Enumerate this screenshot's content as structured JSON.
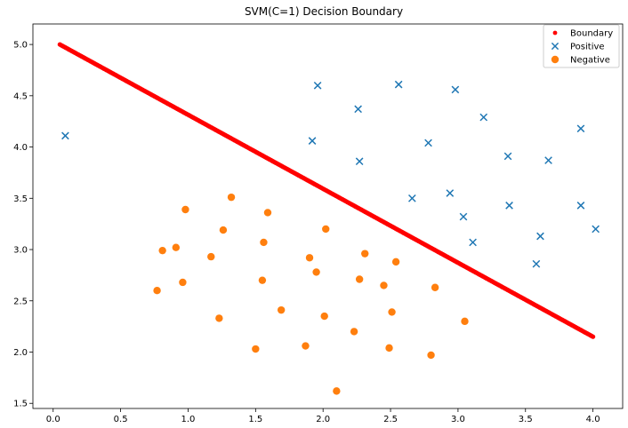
{
  "chart_data": {
    "type": "scatter",
    "title": "SVM(C=1) Decision Boundary",
    "xlabel": "",
    "ylabel": "",
    "xlim": [
      -0.15,
      4.22
    ],
    "ylim": [
      1.45,
      5.2
    ],
    "xticks": [
      0.0,
      0.5,
      1.0,
      1.5,
      2.0,
      2.5,
      3.0,
      3.5,
      4.0
    ],
    "xtick_labels": [
      "0.0",
      "0.5",
      "1.0",
      "1.5",
      "2.0",
      "2.5",
      "3.0",
      "3.5",
      "4.0"
    ],
    "yticks": [
      1.5,
      2.0,
      2.5,
      3.0,
      3.5,
      4.0,
      4.5,
      5.0
    ],
    "ytick_labels": [
      "1.5",
      "2.0",
      "2.5",
      "3.0",
      "3.5",
      "4.0",
      "4.5",
      "5.0"
    ],
    "grid": false,
    "legend_position": "top-right",
    "boundary": {
      "name": "Boundary",
      "color": "#ff0000",
      "x_start": 0.05,
      "y_start": 5.0,
      "x_end": 4.0,
      "y_end": 2.15
    },
    "series": [
      {
        "name": "Positive",
        "marker": "x",
        "color": "#1f77b4",
        "points": [
          [
            0.09,
            4.11
          ],
          [
            1.96,
            4.6
          ],
          [
            2.56,
            4.61
          ],
          [
            2.98,
            4.56
          ],
          [
            2.26,
            4.37
          ],
          [
            3.19,
            4.29
          ],
          [
            1.92,
            4.06
          ],
          [
            2.78,
            4.04
          ],
          [
            3.91,
            4.18
          ],
          [
            2.27,
            3.86
          ],
          [
            3.37,
            3.91
          ],
          [
            3.67,
            3.87
          ],
          [
            2.66,
            3.5
          ],
          [
            2.94,
            3.55
          ],
          [
            3.38,
            3.43
          ],
          [
            3.91,
            3.43
          ],
          [
            3.04,
            3.32
          ],
          [
            4.02,
            3.2
          ],
          [
            3.11,
            3.07
          ],
          [
            3.61,
            3.13
          ],
          [
            3.58,
            2.86
          ]
        ]
      },
      {
        "name": "Negative",
        "marker": "o",
        "color": "#ff7f0e",
        "points": [
          [
            1.32,
            3.51
          ],
          [
            0.98,
            3.39
          ],
          [
            1.59,
            3.36
          ],
          [
            1.26,
            3.19
          ],
          [
            2.02,
            3.2
          ],
          [
            0.91,
            3.02
          ],
          [
            0.81,
            2.99
          ],
          [
            1.56,
            3.07
          ],
          [
            2.31,
            2.96
          ],
          [
            1.17,
            2.93
          ],
          [
            1.9,
            2.92
          ],
          [
            2.54,
            2.88
          ],
          [
            1.95,
            2.78
          ],
          [
            0.96,
            2.68
          ],
          [
            1.55,
            2.7
          ],
          [
            2.27,
            2.71
          ],
          [
            2.45,
            2.65
          ],
          [
            2.83,
            2.63
          ],
          [
            0.77,
            2.6
          ],
          [
            1.69,
            2.41
          ],
          [
            2.51,
            2.39
          ],
          [
            1.23,
            2.33
          ],
          [
            2.01,
            2.35
          ],
          [
            3.05,
            2.3
          ],
          [
            2.23,
            2.2
          ],
          [
            1.87,
            2.06
          ],
          [
            1.5,
            2.03
          ],
          [
            2.49,
            2.04
          ],
          [
            2.8,
            1.97
          ],
          [
            2.1,
            1.62
          ]
        ]
      }
    ]
  }
}
